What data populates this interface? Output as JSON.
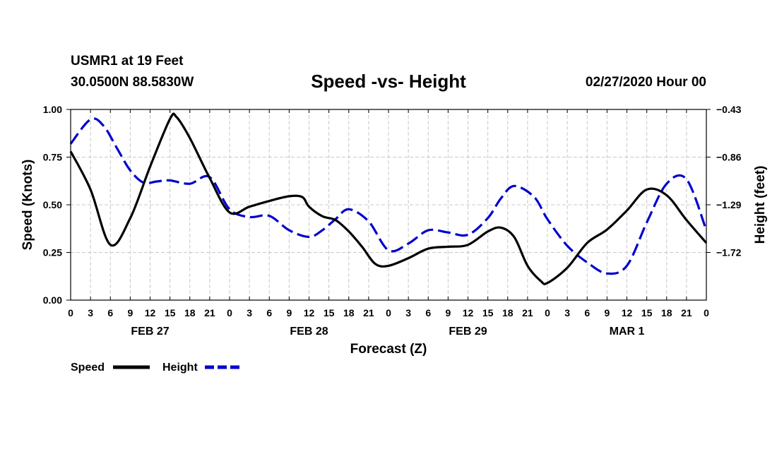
{
  "header": {
    "station": "USMR1 at 19 Feet",
    "coords": "30.0500N 88.5830W",
    "title": "Speed -vs- Height",
    "run": "02/27/2020 Hour 00"
  },
  "colors": {
    "speed": "#000000",
    "height": "#0000cc",
    "grid": "#c8c8c8"
  },
  "chart_data": {
    "type": "line",
    "title": "Speed -vs- Height",
    "xlabel": "Forecast (Z)",
    "ylabel": "Speed (Knots)",
    "y2label": "Height (feet)",
    "xlim": [
      0,
      96
    ],
    "ylim": [
      0,
      1.0
    ],
    "y2lim": [
      -2.15,
      -0.43
    ],
    "yticks": [
      "0.00",
      "0.25",
      "0.50",
      "0.75",
      "1.00"
    ],
    "y2ticks": [
      {
        "value": -0.43,
        "label": "-0.43"
      },
      {
        "value": -0.86,
        "label": "-0.86"
      },
      {
        "value": -1.29,
        "label": "-1.29"
      },
      {
        "value": -1.72,
        "label": "-1.72"
      }
    ],
    "xticks": [
      "0",
      "3",
      "6",
      "9",
      "12",
      "15",
      "18",
      "21",
      "0",
      "3",
      "6",
      "9",
      "12",
      "15",
      "18",
      "21",
      "0",
      "3",
      "6",
      "9",
      "12",
      "15",
      "18",
      "21",
      "0",
      "3",
      "6",
      "9",
      "12",
      "15",
      "18",
      "21",
      "0"
    ],
    "dates": [
      {
        "hour": 12,
        "label": "FEB 27"
      },
      {
        "hour": 36,
        "label": "FEB 28"
      },
      {
        "hour": 60,
        "label": "FEB 29"
      },
      {
        "hour": 84,
        "label": "MAR 1"
      }
    ],
    "legend": {
      "speed": "Speed",
      "height": "Height",
      "position": "bottom-left"
    },
    "series": [
      {
        "name": "Speed",
        "axis": "left",
        "style": "solid",
        "x": [
          0,
          3,
          6,
          9,
          12,
          15,
          16,
          18,
          21,
          24,
          27,
          30,
          33,
          35,
          36,
          38,
          40,
          42,
          44,
          46,
          48,
          51,
          54,
          57,
          60,
          63,
          65,
          67,
          69,
          71,
          72,
          75,
          78,
          81,
          84,
          87,
          90,
          93,
          96
        ],
        "y": [
          0.78,
          0.58,
          0.29,
          0.43,
          0.7,
          0.95,
          0.96,
          0.85,
          0.64,
          0.46,
          0.49,
          0.52,
          0.545,
          0.54,
          0.49,
          0.44,
          0.42,
          0.36,
          0.28,
          0.19,
          0.18,
          0.22,
          0.27,
          0.28,
          0.29,
          0.36,
          0.38,
          0.33,
          0.18,
          0.1,
          0.09,
          0.17,
          0.3,
          0.37,
          0.47,
          0.58,
          0.55,
          0.42,
          0.3
        ]
      },
      {
        "name": "Height",
        "axis": "right",
        "style": "dashed",
        "x": [
          0,
          3,
          5,
          7,
          9,
          11,
          13,
          15,
          18,
          21,
          24,
          27,
          30,
          33,
          36,
          38,
          40,
          42,
          45,
          48,
          51,
          54,
          57,
          60,
          63,
          65,
          67,
          70,
          72,
          75,
          78,
          81,
          84,
          87,
          90,
          93,
          96
        ],
        "y": [
          -0.74,
          -0.52,
          -0.58,
          -0.78,
          -0.98,
          -1.09,
          -1.08,
          -1.07,
          -1.1,
          -1.04,
          -1.33,
          -1.4,
          -1.39,
          -1.52,
          -1.58,
          -1.52,
          -1.42,
          -1.33,
          -1.44,
          -1.7,
          -1.64,
          -1.52,
          -1.54,
          -1.56,
          -1.41,
          -1.23,
          -1.12,
          -1.22,
          -1.42,
          -1.66,
          -1.81,
          -1.91,
          -1.84,
          -1.45,
          -1.1,
          -1.06,
          -1.52
        ]
      }
    ]
  }
}
